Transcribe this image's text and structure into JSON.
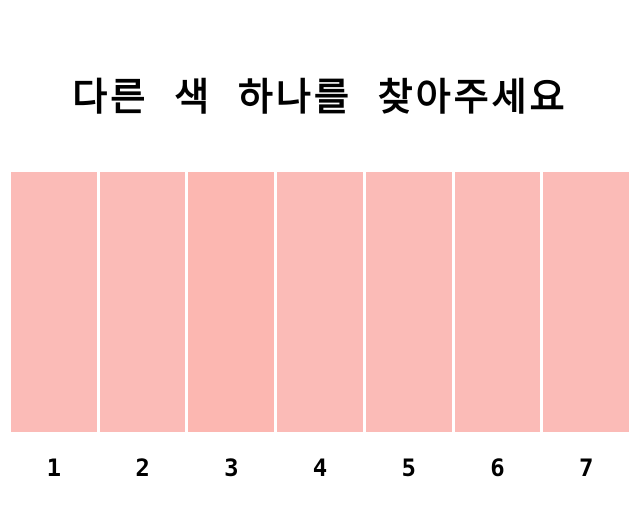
{
  "title": "다른 색 하나를 찾아주세요",
  "options": [
    {
      "label": "1",
      "color": "#fbbbb7"
    },
    {
      "label": "2",
      "color": "#fbbbb7"
    },
    {
      "label": "3",
      "color": "#fcb7b1"
    },
    {
      "label": "4",
      "color": "#fbbbb7"
    },
    {
      "label": "5",
      "color": "#fbbbb7"
    },
    {
      "label": "6",
      "color": "#fbbbb7"
    },
    {
      "label": "7",
      "color": "#fbbbb7"
    }
  ]
}
